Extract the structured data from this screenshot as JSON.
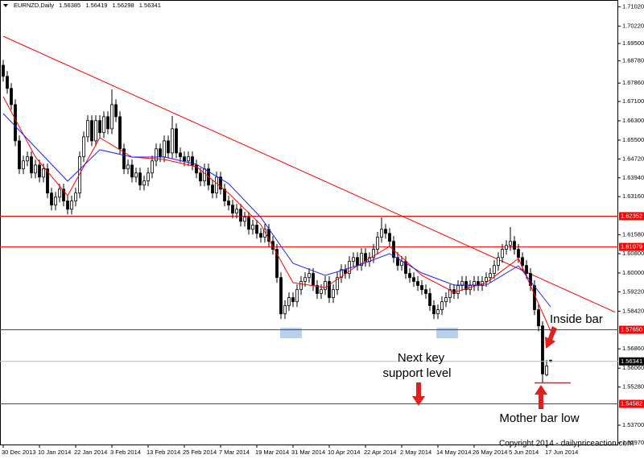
{
  "chart_data": {
    "type": "candlestick",
    "title": "EURNZD,Daily",
    "categories": [
      "30 Dec 2013",
      null,
      null,
      null,
      null,
      null,
      null,
      null,
      null,
      "10 Jan 2014",
      null,
      null,
      null,
      null,
      null,
      null,
      null,
      null,
      "22 Jan 2014",
      null,
      null,
      null,
      null,
      null,
      null,
      null,
      null,
      "3 Feb 2014",
      null,
      null,
      null,
      null,
      null,
      null,
      null,
      null,
      "13 Feb 2014",
      null,
      null,
      null,
      null,
      null,
      null,
      null,
      null,
      "25 Feb 2014",
      null,
      null,
      null,
      null,
      null,
      null,
      null,
      null,
      "7 Mar 2014",
      null,
      null,
      null,
      null,
      null,
      null,
      null,
      null,
      "19 Mar 2014",
      null,
      null,
      null,
      null,
      null,
      null,
      null,
      null,
      "31 Mar 2014",
      null,
      null,
      null,
      null,
      null,
      null,
      null,
      null,
      "10 Apr 2014",
      null,
      null,
      null,
      null,
      null,
      null,
      null,
      null,
      "22 Apr 2014",
      null,
      null,
      null,
      null,
      null,
      null,
      null,
      null,
      "2 May 2014",
      null,
      null,
      null,
      null,
      null,
      null,
      null,
      null,
      "14 May 2014",
      null,
      null,
      null,
      null,
      null,
      null,
      null,
      null,
      "26 May 2014",
      null,
      null,
      null,
      null,
      null,
      null,
      null,
      null,
      "5 Jun 2014",
      null,
      null,
      null,
      null,
      null,
      null,
      null,
      null,
      "17 Jun 2014",
      null
    ],
    "open": [
      1.686,
      1.6814,
      1.6764,
      1.6697,
      1.6547,
      1.6431,
      1.6464,
      1.6481,
      1.6414,
      1.6447,
      1.6397,
      1.6431,
      1.6331,
      1.6281,
      1.6314,
      1.6347,
      1.6298,
      1.6264,
      1.6298,
      1.6331,
      1.6481,
      1.6564,
      1.6631,
      1.6547,
      1.6631,
      1.6581,
      1.6647,
      1.6597,
      1.6697,
      1.6647,
      1.6514,
      1.6431,
      1.6447,
      1.6397,
      1.6414,
      1.6364,
      1.6381,
      1.6414,
      1.6464,
      1.6514,
      1.6481,
      1.6547,
      1.6497,
      1.6597,
      1.6497,
      1.6481,
      1.6464,
      1.6481,
      1.6447,
      1.6414,
      1.6381,
      1.6431,
      1.6364,
      1.6331,
      1.6397,
      1.6347,
      1.6298,
      1.6281,
      1.6248,
      1.6264,
      1.6214,
      1.6231,
      1.6181,
      1.6198,
      1.6164,
      1.6148,
      1.6181,
      1.6131,
      1.6098,
      1.5981,
      1.5831,
      1.5865,
      1.5898,
      1.5881,
      1.5931,
      1.5965,
      1.5981,
      1.5998,
      1.5948,
      1.5915,
      1.5931,
      1.5965,
      1.5898,
      1.5931,
      1.5981,
      1.6014,
      1.5998,
      1.6048,
      1.6064,
      1.6031,
      1.6081,
      1.6048,
      1.6064,
      1.6098,
      1.6148,
      1.6181,
      1.6164,
      1.6131,
      1.6064,
      1.6031,
      1.6048,
      1.5998,
      1.5981,
      1.5965,
      1.5948,
      1.5931,
      1.5915,
      1.5865,
      1.5831,
      1.5848,
      1.5881,
      1.5898,
      1.5931,
      1.5915,
      1.5948,
      1.5965,
      1.5931,
      1.5948,
      1.5965,
      1.5948,
      1.5965,
      1.5981,
      1.5998,
      1.6031,
      1.6064,
      1.6098,
      1.6114,
      1.6131,
      1.6098,
      1.6064,
      1.6031,
      1.5998,
      1.5948,
      1.5848,
      1.5781,
      1.5578,
      1.56385
    ],
    "high": [
      1.6882,
      1.6836,
      1.6786,
      1.6719,
      1.6569,
      1.6486,
      1.6503,
      1.6503,
      1.6469,
      1.6469,
      1.6453,
      1.6453,
      1.6353,
      1.6336,
      1.6369,
      1.6369,
      1.632,
      1.632,
      1.6353,
      1.6503,
      1.6586,
      1.6653,
      1.6653,
      1.6653,
      1.6653,
      1.6669,
      1.6669,
      1.676,
      1.6719,
      1.6669,
      1.6536,
      1.6469,
      1.6469,
      1.6436,
      1.6436,
      1.6403,
      1.6436,
      1.6486,
      1.6536,
      1.6536,
      1.6569,
      1.6569,
      1.665,
      1.6619,
      1.6519,
      1.6503,
      1.6503,
      1.6503,
      1.6469,
      1.6436,
      1.6453,
      1.6453,
      1.6386,
      1.6419,
      1.6419,
      1.6369,
      1.632,
      1.6303,
      1.6286,
      1.6286,
      1.6253,
      1.6253,
      1.622,
      1.622,
      1.6186,
      1.6203,
      1.6203,
      1.6153,
      1.612,
      1.6003,
      1.5887,
      1.592,
      1.592,
      1.5953,
      1.5987,
      1.6003,
      1.602,
      1.602,
      1.597,
      1.5953,
      1.5987,
      1.5987,
      1.5953,
      1.6003,
      1.6036,
      1.6036,
      1.607,
      1.6086,
      1.6086,
      1.6103,
      1.6103,
      1.6086,
      1.612,
      1.617,
      1.623,
      1.6203,
      1.6186,
      1.6153,
      1.6086,
      1.607,
      1.607,
      1.602,
      1.6003,
      1.5987,
      1.597,
      1.5953,
      1.5937,
      1.5887,
      1.587,
      1.5903,
      1.592,
      1.5953,
      1.5953,
      1.597,
      1.5987,
      1.5987,
      1.597,
      1.5987,
      1.5987,
      1.5987,
      1.6003,
      1.602,
      1.6053,
      1.6086,
      1.612,
      1.6136,
      1.619,
      1.6153,
      1.612,
      1.6086,
      1.6053,
      1.602,
      1.597,
      1.587,
      1.58,
      1.564,
      1.56419
    ],
    "low": [
      1.6792,
      1.6742,
      1.6675,
      1.6525,
      1.6409,
      1.6409,
      1.6442,
      1.6392,
      1.6392,
      1.6375,
      1.6375,
      1.6309,
      1.6259,
      1.6259,
      1.6292,
      1.6276,
      1.6242,
      1.6242,
      1.6276,
      1.6309,
      1.6459,
      1.6542,
      1.6525,
      1.6525,
      1.6559,
      1.6559,
      1.6575,
      1.6575,
      1.6625,
      1.6492,
      1.6409,
      1.6409,
      1.6375,
      1.6375,
      1.6342,
      1.6342,
      1.6359,
      1.6392,
      1.6442,
      1.6459,
      1.6459,
      1.6475,
      1.6475,
      1.6475,
      1.6459,
      1.6442,
      1.6442,
      1.6425,
      1.6392,
      1.6359,
      1.6359,
      1.6342,
      1.6309,
      1.6309,
      1.6325,
      1.6276,
      1.6259,
      1.6226,
      1.6226,
      1.6192,
      1.6192,
      1.6159,
      1.6159,
      1.6142,
      1.6126,
      1.6126,
      1.6109,
      1.6076,
      1.5959,
      1.5809,
      1.5809,
      1.5843,
      1.5859,
      1.5859,
      1.5909,
      1.5943,
      1.5959,
      1.5926,
      1.5893,
      1.5893,
      1.5909,
      1.5876,
      1.5876,
      1.5909,
      1.5959,
      1.5976,
      1.5976,
      1.6026,
      1.6009,
      1.6009,
      1.6026,
      1.6026,
      1.6042,
      1.6076,
      1.6126,
      1.6142,
      1.6109,
      1.6042,
      1.6009,
      1.6009,
      1.5976,
      1.5959,
      1.5943,
      1.5926,
      1.5909,
      1.5893,
      1.5843,
      1.5809,
      1.5809,
      1.5826,
      1.5859,
      1.5876,
      1.5893,
      1.5893,
      1.5926,
      1.5909,
      1.5909,
      1.5926,
      1.5926,
      1.5926,
      1.5943,
      1.5959,
      1.5976,
      1.6009,
      1.6042,
      1.6076,
      1.6092,
      1.6076,
      1.6042,
      1.6009,
      1.5976,
      1.5926,
      1.5826,
      1.5759,
      1.5545,
      1.5572,
      1.56298
    ],
    "close": [
      1.6814,
      1.6764,
      1.6697,
      1.6547,
      1.6431,
      1.6464,
      1.6481,
      1.6414,
      1.6447,
      1.6397,
      1.6431,
      1.6331,
      1.6281,
      1.6314,
      1.6347,
      1.6298,
      1.6264,
      1.6298,
      1.6331,
      1.6481,
      1.6564,
      1.6631,
      1.6547,
      1.6631,
      1.6581,
      1.6647,
      1.6597,
      1.6697,
      1.6647,
      1.6514,
      1.6431,
      1.6447,
      1.6397,
      1.6414,
      1.6364,
      1.6381,
      1.6414,
      1.6464,
      1.6514,
      1.6481,
      1.6547,
      1.6497,
      1.6597,
      1.6497,
      1.6481,
      1.6464,
      1.6481,
      1.6447,
      1.6414,
      1.6381,
      1.6431,
      1.6364,
      1.6331,
      1.6397,
      1.6347,
      1.6298,
      1.6281,
      1.6248,
      1.6264,
      1.6214,
      1.6231,
      1.6181,
      1.6198,
      1.6164,
      1.6148,
      1.6181,
      1.6131,
      1.6098,
      1.5981,
      1.5831,
      1.5865,
      1.5898,
      1.5881,
      1.5931,
      1.5965,
      1.5981,
      1.5998,
      1.5948,
      1.5915,
      1.5931,
      1.5965,
      1.5898,
      1.5931,
      1.5981,
      1.6014,
      1.5998,
      1.6048,
      1.6064,
      1.6031,
      1.6081,
      1.6048,
      1.6064,
      1.6098,
      1.6148,
      1.6181,
      1.6164,
      1.6131,
      1.6064,
      1.6031,
      1.6048,
      1.5998,
      1.5981,
      1.5965,
      1.5948,
      1.5931,
      1.5915,
      1.5865,
      1.5831,
      1.5848,
      1.5881,
      1.5898,
      1.5931,
      1.5915,
      1.5948,
      1.5965,
      1.5931,
      1.5948,
      1.5965,
      1.5948,
      1.5965,
      1.5981,
      1.5998,
      1.6031,
      1.6064,
      1.6098,
      1.6114,
      1.6131,
      1.6098,
      1.6064,
      1.6031,
      1.5998,
      1.5948,
      1.5848,
      1.5781,
      1.5582,
      1.5615,
      1.56341
    ],
    "ylim": [
      1.529,
      1.713
    ],
    "yticks": [
      {
        "value": 1.7102,
        "label": "1.71020"
      },
      {
        "value": 1.7022,
        "label": "1.70220"
      },
      {
        "value": 1.695,
        "label": "1.69500"
      },
      {
        "value": 1.6878,
        "label": "1.68780"
      },
      {
        "value": 1.6786,
        "label": "1.67860"
      },
      {
        "value": 1.671,
        "label": "1.67100"
      },
      {
        "value": 1.663,
        "label": "1.66300"
      },
      {
        "value": 1.655,
        "label": "1.65500"
      },
      {
        "value": 1.6472,
        "label": "1.64720"
      },
      {
        "value": 1.6394,
        "label": "1.63940"
      },
      {
        "value": 1.6316,
        "label": "1.63160"
      },
      {
        "value": 1.6158,
        "label": "1.61580"
      },
      {
        "value": 1.608,
        "label": "1.60800"
      },
      {
        "value": 1.6,
        "label": "1.60000"
      },
      {
        "value": 1.5922,
        "label": "1.59220"
      },
      {
        "value": 1.5842,
        "label": "1.58420"
      },
      {
        "value": 1.5686,
        "label": "1.56860"
      },
      {
        "value": 1.5606,
        "label": "1.56060"
      },
      {
        "value": 1.5528,
        "label": "1.55280"
      },
      {
        "value": 1.537,
        "label": "1.53700"
      },
      {
        "value": 1.5297,
        "label": "1.52970"
      }
    ],
    "levels": [
      {
        "value": 1.62352,
        "label": "1.62352"
      },
      {
        "value": 1.61079,
        "label": "1.61079"
      },
      {
        "value": 1.5765,
        "label": "1.57650"
      },
      {
        "value": 1.54582,
        "label": "1.54582"
      }
    ],
    "level_color": "#ff0000",
    "trendline": {
      "color": "#ff0000",
      "x": [
        0,
        152
      ],
      "values": [
        1.698,
        1.5838
      ]
    },
    "moving_averages": [
      {
        "color": "#ff0000",
        "x": [
          0,
          8,
          16,
          24,
          32,
          40,
          48,
          56,
          64,
          72,
          80,
          88,
          96,
          104,
          112,
          120,
          128,
          136
        ],
        "values": [
          1.673,
          1.648,
          1.632,
          1.656,
          1.648,
          1.647,
          1.644,
          1.633,
          1.62,
          1.596,
          1.594,
          1.603,
          1.611,
          1.599,
          1.592,
          1.596,
          1.606,
          1.576
        ]
      },
      {
        "color": "#1f1fff",
        "x": [
          0,
          8,
          16,
          24,
          32,
          40,
          48,
          56,
          64,
          72,
          80,
          88,
          96,
          104,
          112,
          120,
          128,
          136
        ],
        "values": [
          1.666,
          1.652,
          1.638,
          1.651,
          1.648,
          1.648,
          1.645,
          1.637,
          1.623,
          1.604,
          1.599,
          1.603,
          1.608,
          1.6,
          1.595,
          1.595,
          1.603,
          1.586
        ]
      }
    ],
    "annotations": {
      "inside_bar": "Inside bar",
      "support": [
        "Next key",
        "support level"
      ],
      "mother_low": "Mother bar low",
      "copyright": "Copyright 2014 - dailypriceaction.com"
    }
  }
}
